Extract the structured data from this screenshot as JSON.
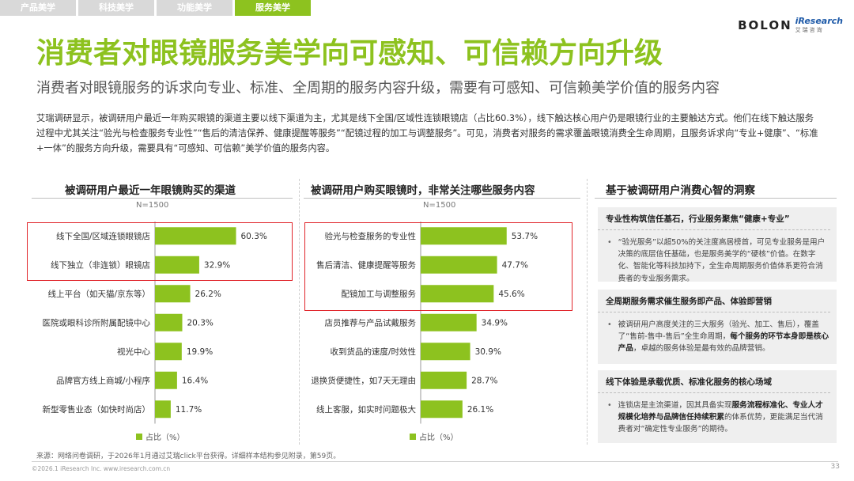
{
  "tabs": [
    {
      "label": "产品美学",
      "active": false
    },
    {
      "label": "科技美学",
      "active": false
    },
    {
      "label": "功能美学",
      "active": false
    },
    {
      "label": "服务美学",
      "active": true
    }
  ],
  "logo": {
    "brand": "BOLON",
    "partner": "iResearch",
    "partner_cn": "艾瑞咨询"
  },
  "title": "消费者对眼镜服务美学向可感知、可信赖方向升级",
  "subtitle": "消费者对眼镜服务的诉求向专业、标准、全周期的服务内容升级，需要有可感知、可信赖美学价值的服务内容",
  "intro": "艾瑞调研显示，被调研用户最近一年购买眼镜的渠道主要以线下渠道为主，尤其是线下全国/区域性连锁眼镜店（占比60.3%），线下触达核心用户仍是眼镜行业的主要触达方式。他们在线下触达服务过程中尤其关注“验光与检查服务专业性”“售后的清洁保养、健康提醒等服务”“配镜过程的加工与调整服务”。可见，消费者对服务的需求覆盖眼镜消费全生命周期，且服务诉求向“专业+健康”、“标准+一体”的服务方向升级，需要具有“可感知、可信赖”美学价值的服务内容。",
  "chart_data": [
    {
      "type": "bar",
      "orientation": "horizontal",
      "title": "被调研用户最近一年眼镜购买的渠道",
      "note": "N=1500",
      "legend": "占比（%）",
      "unit": "%",
      "categories": [
        "线下全国/区域连锁眼镜店",
        "线下独立（非连锁）眼镜店",
        "线上平台（如天猫/京东等）",
        "医院或眼科诊所附属配镜中心",
        "视光中心",
        "品牌官方线上商城/小程序",
        "新型零售业态（如快时尚店）"
      ],
      "values": [
        60.3,
        32.9,
        26.2,
        20.3,
        19.9,
        16.4,
        11.7
      ],
      "highlighted": [
        0,
        1
      ],
      "xlim": [
        0,
        80
      ]
    },
    {
      "type": "bar",
      "orientation": "horizontal",
      "title": "被调研用户购买眼镜时，非常关注哪些服务内容",
      "note": "N=1500",
      "legend": "占比（%）",
      "unit": "%",
      "categories": [
        "验光与检查服务的专业性",
        "售后清洁、健康提醒等服务",
        "配镜加工与调整服务",
        "店员推荐与产品试戴服务",
        "收到货品的速度/时效性",
        "退换货便捷性，如7天无理由",
        "线上客服，如实时问题极大"
      ],
      "values": [
        53.7,
        47.7,
        45.6,
        34.9,
        30.9,
        28.7,
        26.1
      ],
      "highlighted": [
        0,
        1,
        2
      ],
      "xlim": [
        0,
        80
      ]
    }
  ],
  "insights": {
    "title": "基于被调研用户消费心智的洞察",
    "cards": [
      {
        "heading": "专业性构筑信任基石，行业服务聚焦“健康+专业”",
        "pre": "“验光服务”以超50%的关注度高居榜首，可见专业服务是用户决策的底层信任基础，也是服务美学的“硬核”价值。在数字化、智能化等科技加持下，全生命周期服务价值体系更符合消费者的专业服务需求。",
        "bold": "",
        "post": ""
      },
      {
        "heading": "全周期服务需求催生服务即产品、体验即营销",
        "pre": "被调研用户高度关注的三大服务（验光、加工、售后），覆盖了“售前-售中-售后”全生命周期，",
        "bold": "每个服务的环节本身即是核心产品",
        "post": "，卓越的服务体验是最有效的品牌营销。"
      },
      {
        "heading": "线下体验是承载优质、标准化服务的核心场域",
        "pre": "连锁店是主流渠道，因其具备实现",
        "bold": "服务流程标准化、专业人才规模化培养与品牌信任持续积累",
        "post": "的体系优势，更能满足当代消费者对“确定性专业服务”的期待。"
      }
    ]
  },
  "source": "来源：网络问卷调研，于2026年1月通过艾瑞click平台获得。详细样本结构参见附录，第59页。",
  "copyright": "©2026.1 iResearch Inc.                    www.iresearch.com.cn",
  "page_number": "33",
  "colors": {
    "accent": "#8dc21f",
    "highlight_box": "#e0242a",
    "panel_bg": "#efefef"
  }
}
